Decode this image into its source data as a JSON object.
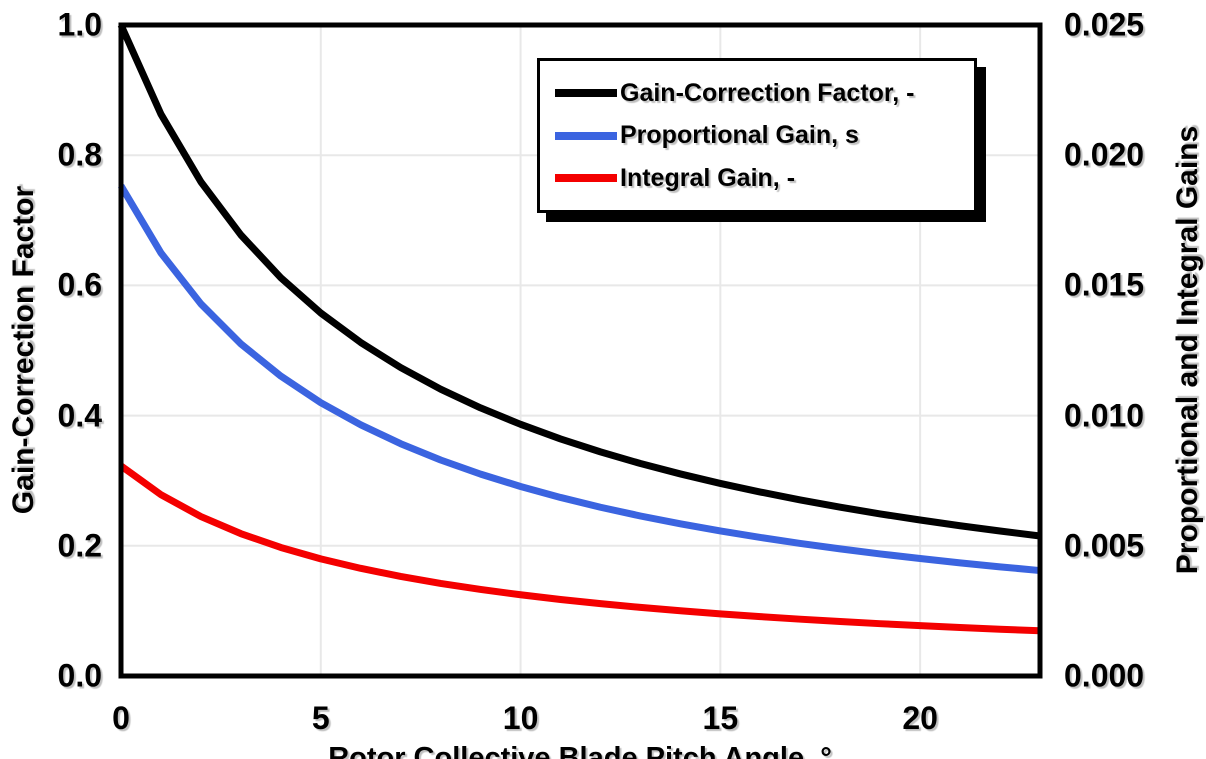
{
  "figure": {
    "background": "#FFFFFF",
    "frame_color": "#000000",
    "gridline_color": "#E8E8E8",
    "x_axis": {
      "title": "Rotor Collective Blade Pitch Angle, °",
      "tick_labels": [
        "0",
        "5",
        "10",
        "15",
        "20"
      ]
    },
    "y_axis_left": {
      "title": "Gain-Correction Factor",
      "tick_labels": [
        "0.0",
        "0.2",
        "0.4",
        "0.6",
        "0.8",
        "1.0"
      ]
    },
    "y_axis_right": {
      "title": "Proportional and Integral Gains",
      "tick_labels": [
        "0.000",
        "0.005",
        "0.010",
        "0.015",
        "0.020",
        "0.025"
      ]
    },
    "legend": {
      "items": [
        {
          "label": "Gain-Correction Factor, -",
          "color": "#000000"
        },
        {
          "label": "Proportional Gain, s",
          "color": "#3B64E0"
        },
        {
          "label": "Integral Gain, -",
          "color": "#F40000"
        }
      ]
    }
  },
  "chart_data": {
    "type": "line",
    "title": "",
    "xlabel": "Rotor Collective Blade Pitch Angle, °",
    "ylabel_left": "Gain-Correction Factor",
    "ylabel_right": "Proportional and Integral Gains",
    "xlim": [
      0,
      23
    ],
    "ylim_left": [
      0,
      1.0
    ],
    "ylim_right": [
      0,
      0.025
    ],
    "grid": true,
    "legend_position": "inside-top-right",
    "x": [
      0,
      1,
      2,
      3,
      4,
      5,
      6,
      7,
      8,
      9,
      10,
      11,
      12,
      13,
      14,
      15,
      16,
      17,
      18,
      19,
      20,
      21,
      22,
      23
    ],
    "series": [
      {
        "name": "Gain-Correction Factor, -",
        "axis": "left",
        "color": "#000000",
        "values": [
          1.0,
          0.863,
          0.759,
          0.6775,
          0.6118,
          0.5576,
          0.5123,
          0.4738,
          0.4406,
          0.4118,
          0.3866,
          0.3642,
          0.3443,
          0.3264,
          0.3104,
          0.2958,
          0.2826,
          0.2704,
          0.2593,
          0.249,
          0.2396,
          0.2308,
          0.2227,
          0.2151
        ]
      },
      {
        "name": "Proportional Gain, s",
        "axis": "right",
        "color": "#3B64E0",
        "values": [
          0.018826,
          0.016246,
          0.014291,
          0.012754,
          0.011517,
          0.010497,
          0.009645,
          0.00892,
          0.008295,
          0.007752,
          0.007278,
          0.006857,
          0.006481,
          0.006145,
          0.005843,
          0.005569,
          0.00532,
          0.00509,
          0.004881,
          0.004688,
          0.004511,
          0.004345,
          0.004192,
          0.004049
        ]
      },
      {
        "name": "Integral Gain, -",
        "axis": "right",
        "color": "#F40000",
        "values": [
          0.008069,
          0.006963,
          0.006124,
          0.005467,
          0.004936,
          0.004499,
          0.004134,
          0.003823,
          0.003555,
          0.003323,
          0.003119,
          0.002939,
          0.002778,
          0.002634,
          0.002504,
          0.002387,
          0.00228,
          0.002182,
          0.002092,
          0.002009,
          0.001933,
          0.001862,
          0.001797,
          0.001736
        ]
      }
    ]
  }
}
